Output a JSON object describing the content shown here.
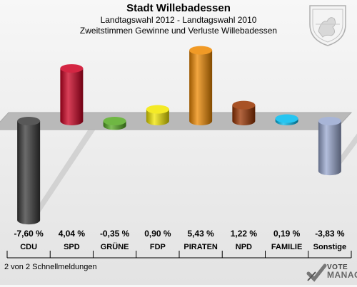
{
  "header": {
    "title": "Stadt Willebadessen",
    "subtitle1": "Landtagswahl 2012 - Landtagswahl 2010",
    "subtitle2": "Zweitstimmen Gewinne und Verluste Willebadessen"
  },
  "footer": {
    "note": "2 von 2 Schnellmeldungen",
    "brand_top": "VOTE",
    "brand_bottom": "MANAGER"
  },
  "chart_data": {
    "type": "bar",
    "categories": [
      "CDU",
      "SPD",
      "GRÜNE",
      "FDP",
      "PIRATEN",
      "NPD",
      "FAMILIE",
      "Sonstige"
    ],
    "values": [
      -7.6,
      4.04,
      -0.35,
      0.9,
      5.43,
      1.22,
      0.19,
      -3.83
    ],
    "labels": [
      "-7,60 %",
      "4,04 %",
      "-0,35 %",
      "0,90 %",
      "5,43 %",
      "1,22 %",
      "0,19 %",
      "-3,83 %"
    ],
    "colors": [
      "#3a3a3a",
      "#cc0022",
      "#55aa22",
      "#f2e600",
      "#ee8800",
      "#993300",
      "#00bbee",
      "#99a8d0"
    ],
    "title": "",
    "xlabel": "",
    "ylabel": "",
    "ylim": [
      -8,
      6
    ]
  }
}
